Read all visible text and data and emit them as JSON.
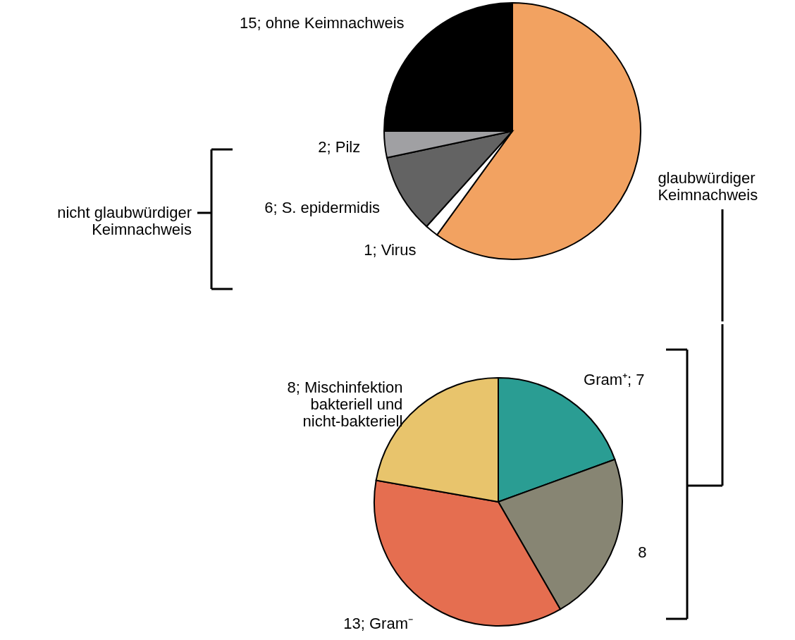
{
  "chart_data": [
    {
      "type": "pie",
      "categories": [
        "glaubwürdiger\nKeimnachweis",
        "1; Virus",
        "6; S. epidermidis",
        "2; Pilz",
        "15; ohne Keimnachweis"
      ],
      "values": [
        36,
        1,
        6,
        2,
        15
      ],
      "colors": [
        "#f2a261",
        "#ffffff",
        "#636363",
        "#a0a0a3",
        "#000000"
      ],
      "annotations": [
        "nicht glaubwürdiger\nKeimnachweis"
      ]
    },
    {
      "type": "pie",
      "categories": [
        "Gram⁺; 7",
        "8",
        "13; Gram⁻",
        "8; Mischinfektion\nbakteriell und\nnicht-bakteriell"
      ],
      "values": [
        7,
        8,
        13,
        8
      ],
      "colors": [
        "#2a9d93",
        "#878573",
        "#e56e50",
        "#e8c46c"
      ]
    }
  ]
}
